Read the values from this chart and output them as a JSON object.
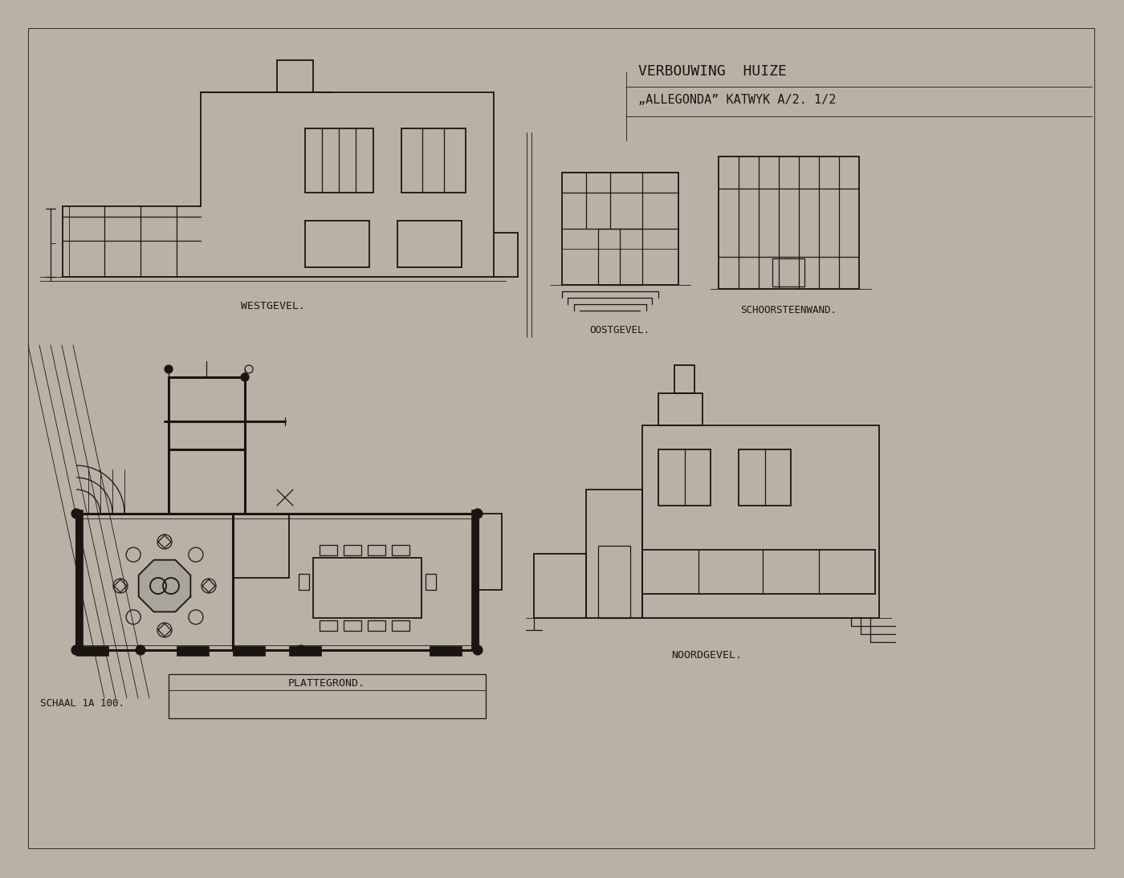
{
  "bg_color": "#b8b2a6",
  "paper_color": "#d4cfc5",
  "line_color": "#1a1510",
  "title_line1": "VERBOUWING  HUIZE",
  "title_line2": "„ALLEGONDA” KATWYK A/2. 1/2",
  "label_westgevel": "WESTGEVEL.",
  "label_oostgevel": "OOSTGEVEL.",
  "label_schoorsteenwand": "SCHOORSTEENWAND.",
  "label_noordgevel": "NOORDGEVEL.",
  "label_plattegrond": "PLATTEGROND.",
  "label_schaal": "SCHAAL 1A 100.",
  "fig_width": 14.0,
  "fig_height": 10.94
}
